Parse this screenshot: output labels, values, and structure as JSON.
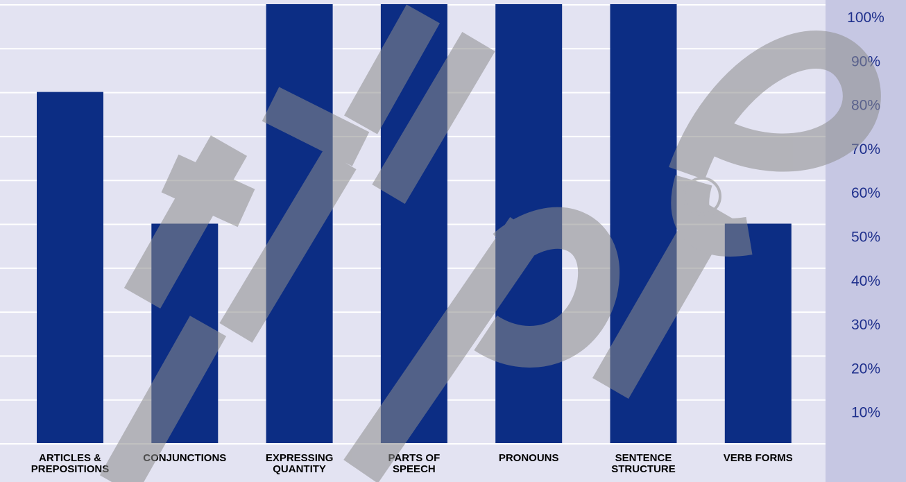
{
  "chart_data": {
    "type": "bar",
    "categories": [
      [
        "ARTICLES &",
        "PREPOSITIONS"
      ],
      [
        "CONJUNCTIONS"
      ],
      [
        "EXPRESSING",
        "QUANTITY"
      ],
      [
        "PARTS OF",
        "SPEECH"
      ],
      [
        "PRONOUNS"
      ],
      [
        "SENTENCE",
        "STRUCTURE"
      ],
      [
        "VERB FORMS"
      ]
    ],
    "values": [
      80,
      50,
      100,
      100,
      100,
      100,
      50
    ],
    "yticks": [
      "10%",
      "20%",
      "30%",
      "40%",
      "50%",
      "60%",
      "70%",
      "80%",
      "90%",
      "100%"
    ],
    "ylim": [
      0,
      100
    ],
    "axis_position": "right",
    "grid": true,
    "colors": {
      "bar": "#0c2d84",
      "plot_bg": "#e3e3f2",
      "axis_bg": "#c6c7e3",
      "grid": "#ffffff",
      "tick_text": "#1e2f8c",
      "watermark": "#8c8c8c"
    },
    "watermark": "Triple"
  }
}
